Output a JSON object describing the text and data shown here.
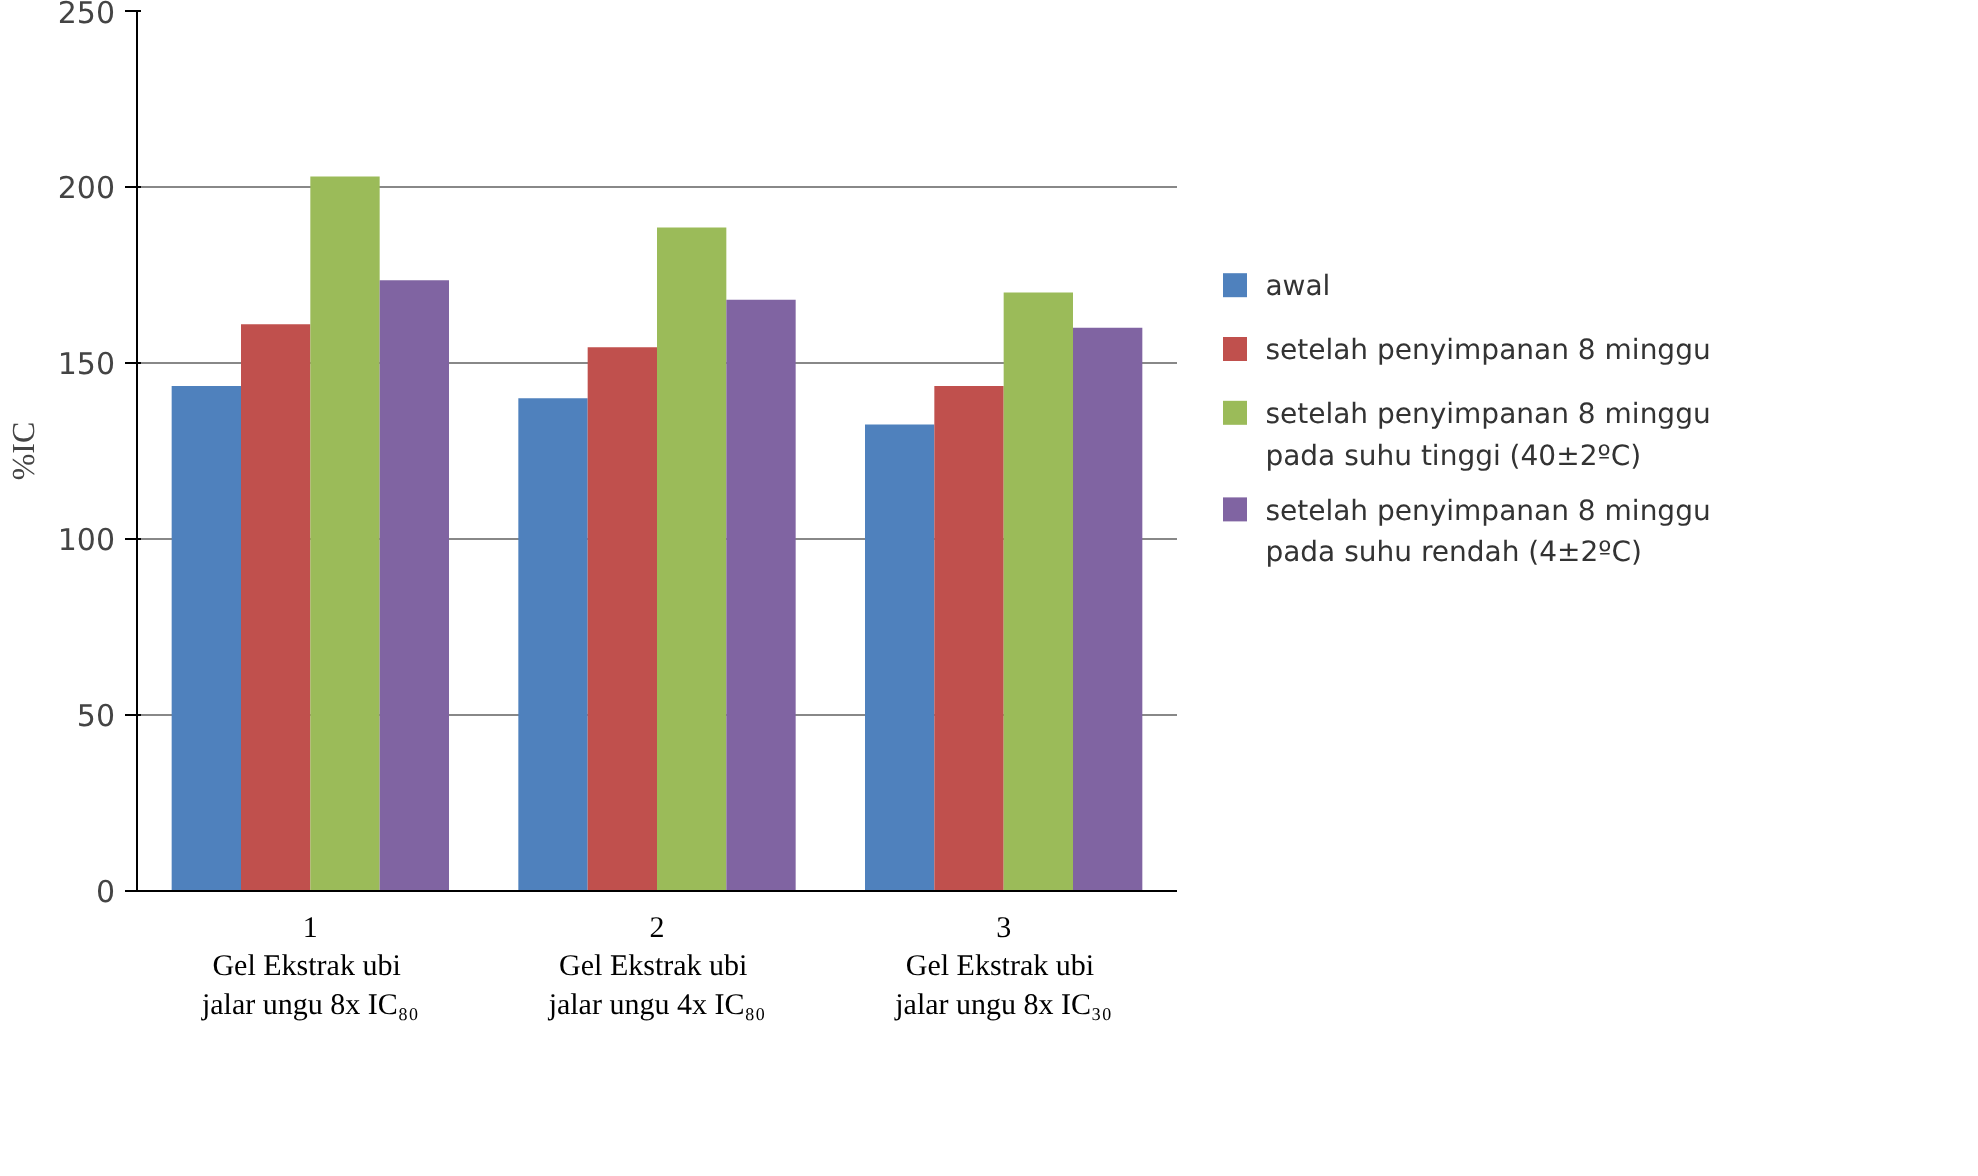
{
  "chart_data": {
    "type": "bar",
    "ylabel": "%IC",
    "categories": [
      "1\nGel  Ekstrak ubi\njalar ungu 8x IC₈₀",
      "2\nGel  Ekstrak ubi\njalar ungu 4x IC₈₀",
      "3\nGel  Ekstrak ubi\njalar ungu 8x IC₃₀"
    ],
    "series": [
      {
        "name": "awal",
        "color": "#4f81bd",
        "values": [
          143.5,
          140,
          132.5
        ]
      },
      {
        "name": "setelah penyimpanan 8 minggu",
        "color": "#c0504d",
        "values": [
          161,
          154.5,
          143.5
        ]
      },
      {
        "name": "setelah penyimpanan 8 minggu\npada suhu tinggi (40±2ºC)",
        "color": "#9bbb59",
        "values": [
          203,
          188.5,
          170
        ]
      },
      {
        "name": "setelah penyimpanan 8 minggu\npada suhu rendah (4±2ºC)",
        "color": "#8064a2",
        "values": [
          173.5,
          168,
          160
        ]
      }
    ],
    "ylim": [
      0,
      250
    ],
    "yticks": [
      0,
      50,
      100,
      150,
      200,
      250
    ],
    "grid": "y",
    "legend": "right"
  }
}
